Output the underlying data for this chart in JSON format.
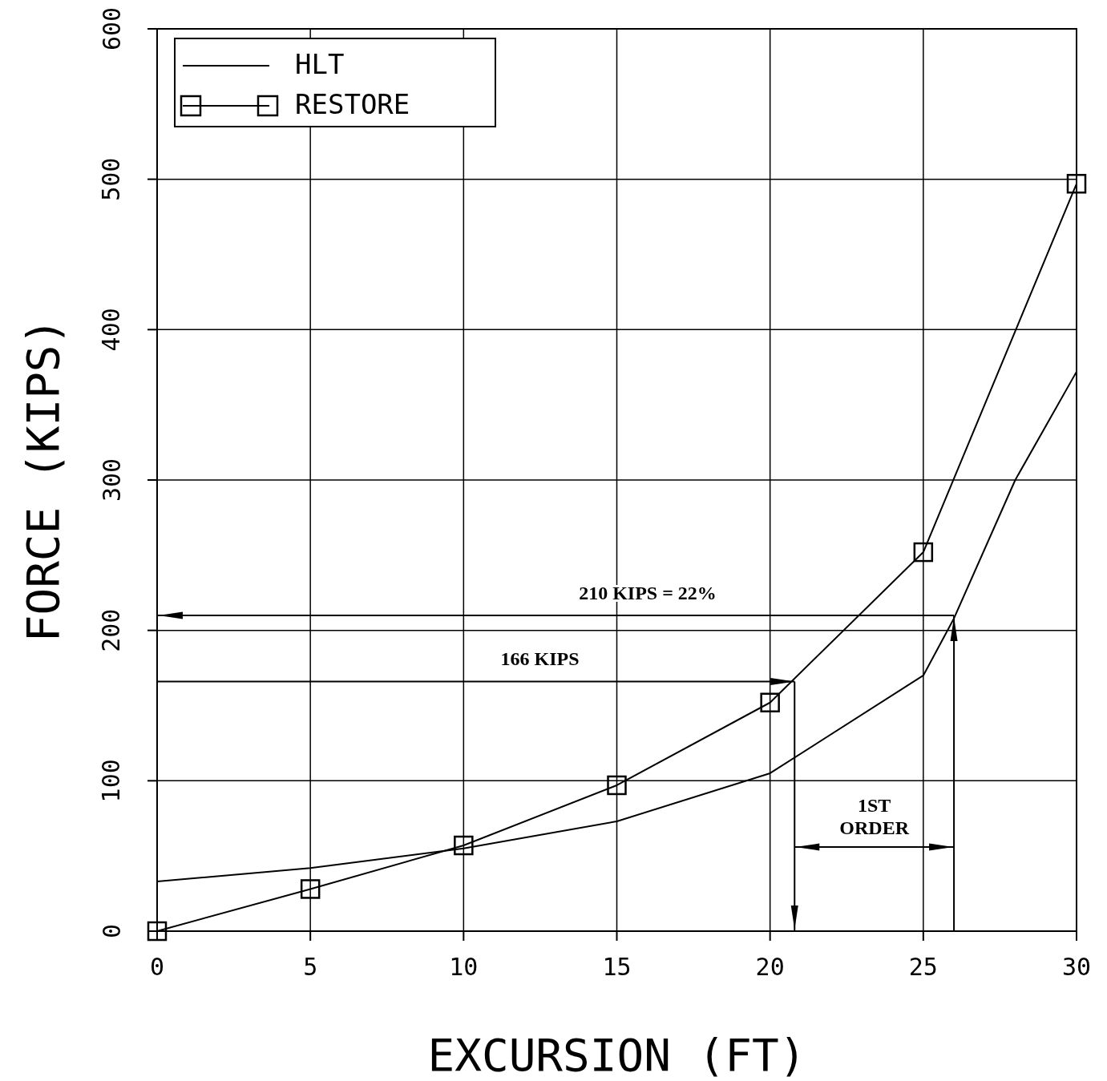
{
  "chart_data": {
    "type": "line",
    "xlabel": "EXCURSION (FT)",
    "ylabel": "FORCE (KIPS)",
    "xlim": [
      0,
      30
    ],
    "xticks": [
      0,
      5,
      10,
      15,
      20,
      25,
      30
    ],
    "ylim": [
      0,
      600
    ],
    "yticks": [
      0,
      100,
      200,
      300,
      400,
      500,
      600
    ],
    "grid": true,
    "legend": "top left",
    "series": [
      {
        "name": "HLT",
        "color": "#000000",
        "marker": "none",
        "x": [
          0,
          5,
          10,
          15,
          20,
          25,
          26,
          28,
          30
        ],
        "values": [
          33,
          42,
          55,
          73,
          105,
          170,
          208,
          300,
          372
        ]
      },
      {
        "name": "RESTORE",
        "color": "#000000",
        "marker": "square",
        "x": [
          0,
          5,
          10,
          15,
          20,
          25,
          30
        ],
        "values": [
          0,
          28,
          57,
          97,
          152,
          252,
          497
        ]
      }
    ],
    "ref_lines": [
      {
        "axis": "y",
        "value": 166,
        "label": "166 KIPS"
      },
      {
        "axis": "y",
        "value": 210,
        "label": "210 KIPS = 22%"
      },
      {
        "axis": "x",
        "value": 20.8
      },
      {
        "axis": "x",
        "value": 26
      }
    ],
    "annotations": [
      "1ST ORDER"
    ]
  }
}
